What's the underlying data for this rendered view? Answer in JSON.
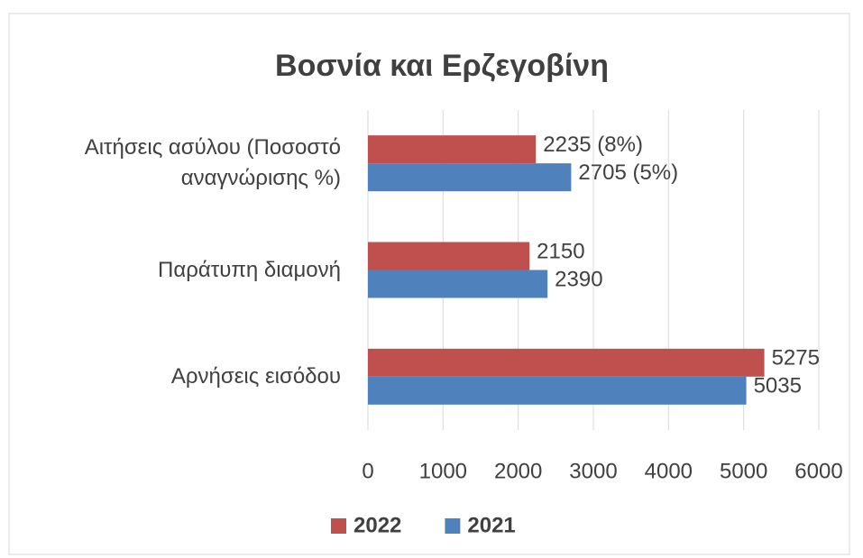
{
  "chart_data": {
    "type": "bar",
    "orientation": "horizontal",
    "title": "Βοσνία και Ερζεγοβίνη",
    "categories": [
      "Αιτήσεις ασύλου (Ποσοστό αναγνώρισης %)",
      "Παράτυπη διαμονή",
      "Αρνήσεις εισόδου"
    ],
    "series": [
      {
        "name": "2022",
        "color": "#c0504d",
        "values": [
          2235,
          2150,
          5275
        ],
        "value_labels": [
          "2235 (8%)",
          "2150",
          "5275"
        ]
      },
      {
        "name": "2021",
        "color": "#4f81bd",
        "values": [
          2705,
          2390,
          5035
        ],
        "value_labels": [
          "2705 (5%)",
          "2390",
          "5035"
        ]
      }
    ],
    "xlim": [
      0,
      6000
    ],
    "xticks": [
      0,
      1000,
      2000,
      3000,
      4000,
      5000,
      6000
    ],
    "grid": true,
    "legend": "bottom"
  }
}
